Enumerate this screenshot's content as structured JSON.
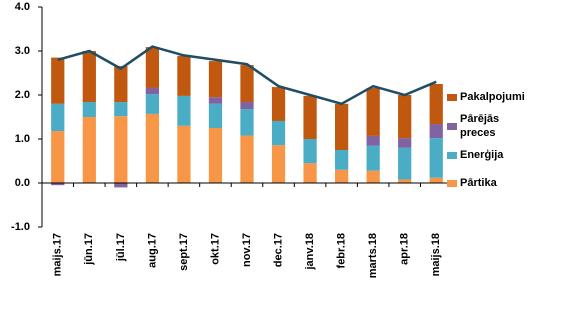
{
  "chart_data": {
    "type": "bar",
    "categories": [
      "maijs.17",
      "jūn.17",
      "jūl.17",
      "aug.17",
      "sept.17",
      "okt.17",
      "nov.17",
      "dec.17",
      "janv.18",
      "febr.18",
      "marts.18",
      "apr.18",
      "maijs.18"
    ],
    "series": [
      {
        "name": "Pārtika",
        "color": "#f79646",
        "values": [
          1.18,
          1.5,
          1.52,
          1.57,
          1.3,
          1.25,
          1.08,
          0.86,
          0.45,
          0.3,
          0.28,
          0.08,
          0.12
        ]
      },
      {
        "name": "Enerģija",
        "color": "#4bacc6",
        "values": [
          0.62,
          0.34,
          0.32,
          0.45,
          0.68,
          0.55,
          0.6,
          0.55,
          0.55,
          0.45,
          0.57,
          0.72,
          0.9
        ]
      },
      {
        "name": "Pārējās preces",
        "color": "#8064a2",
        "values": [
          -0.05,
          0,
          -0.1,
          0.14,
          0,
          0.15,
          0.16,
          0,
          0,
          0,
          0.22,
          0.22,
          0.32
        ]
      },
      {
        "name": "Pakalpojumi",
        "color": "#c0580f",
        "values": [
          1.05,
          1.16,
          0.82,
          0.93,
          0.91,
          0.82,
          0.84,
          0.77,
          0.98,
          1.05,
          1.09,
          0.98,
          0.91
        ]
      },
      {
        "type": "line",
        "color": "#1f4e64",
        "values": [
          2.8,
          3.0,
          2.6,
          3.1,
          2.9,
          2.8,
          2.7,
          2.2,
          2.0,
          1.8,
          2.2,
          2.0,
          2.3
        ]
      }
    ],
    "ylim": [
      -1,
      4
    ],
    "yticks": [
      {
        "value": -1,
        "label": "-1.0"
      },
      {
        "value": 0,
        "label": "0.0"
      },
      {
        "value": 1,
        "label": "1.0"
      },
      {
        "value": 2,
        "label": "2.0"
      },
      {
        "value": 3,
        "label": "3.0"
      },
      {
        "value": 4,
        "label": "4.0"
      }
    ],
    "grid": false
  }
}
